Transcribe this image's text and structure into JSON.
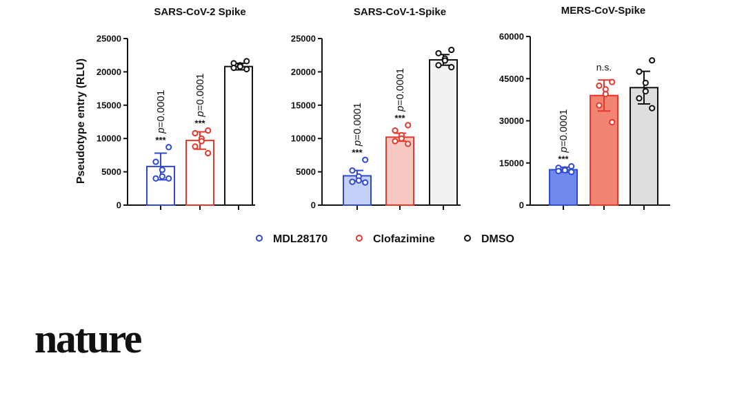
{
  "colors": {
    "mdl28170_edge": "#2f49d1",
    "clofazimine_edge": "#e8362a",
    "dmso_edge": "#111111",
    "axis": "#111111"
  },
  "brand": {
    "logo_text": "nature"
  },
  "figure": {
    "ylabel": "Pseudotype entry (RLU)"
  },
  "legend": [
    {
      "label": "MDL28170",
      "color": "#2f49d1"
    },
    {
      "label": "Clofazimine",
      "color": "#e8362a"
    },
    {
      "label": "DMSO",
      "color": "#111111"
    }
  ],
  "chart_data": [
    {
      "type": "bar",
      "title": "SARS-CoV-2 Spike",
      "ylabel": "Pseudotype entry (RLU)",
      "ylim": [
        0,
        25000
      ],
      "yticks": [
        0,
        5000,
        10000,
        15000,
        20000,
        25000
      ],
      "series": [
        {
          "name": "MDL28170",
          "mean": 5800,
          "sd": 2000,
          "fill": "#ffffff",
          "edge": "#2f49d1",
          "points": [
            8700,
            6500,
            5300,
            4300,
            4000,
            4000
          ],
          "annotation": {
            "stars": "***",
            "p": "=0.0001"
          }
        },
        {
          "name": "Clofazimine",
          "mean": 9700,
          "sd": 1300,
          "fill": "#ffffff",
          "edge": "#e8362a",
          "points": [
            11200,
            10800,
            10000,
            9600,
            8800,
            7800
          ],
          "annotation": {
            "stars": "***",
            "p": "=0.0001"
          }
        },
        {
          "name": "DMSO",
          "mean": 20800,
          "sd": 500,
          "fill": "#ffffff",
          "edge": "#111111",
          "points": [
            21600,
            21300,
            21000,
            20800,
            20600,
            20400
          ],
          "annotation": null
        }
      ]
    },
    {
      "type": "bar",
      "title": "SARS-CoV-1-Spike",
      "ylabel": "",
      "ylim": [
        0,
        25000
      ],
      "yticks": [
        0,
        5000,
        10000,
        15000,
        20000,
        25000
      ],
      "series": [
        {
          "name": "MDL28170",
          "mean": 4400,
          "sd": 800,
          "fill": "#c3d0f7",
          "edge": "#2f49d1",
          "points": [
            6800,
            5200,
            4300,
            3700,
            3500,
            3400
          ],
          "annotation": {
            "stars": "***",
            "p": "=0.0001"
          }
        },
        {
          "name": "Clofazimine",
          "mean": 10200,
          "sd": 600,
          "fill": "#f8c9c2",
          "edge": "#e8362a",
          "points": [
            12000,
            11200,
            10500,
            10000,
            9600,
            9200
          ],
          "annotation": {
            "stars": "***",
            "p": "=0.0001"
          }
        },
        {
          "name": "DMSO",
          "mean": 21800,
          "sd": 800,
          "fill": "#f1f1f1",
          "edge": "#111111",
          "points": [
            23300,
            22800,
            22000,
            21700,
            21000,
            20700
          ],
          "annotation": null
        }
      ]
    },
    {
      "type": "bar",
      "title": "MERS-CoV-Spike",
      "ylabel": "",
      "ylim": [
        0,
        60000
      ],
      "yticks": [
        0,
        15000,
        30000,
        45000,
        60000
      ],
      "series": [
        {
          "name": "MDL28170",
          "mean": 12600,
          "sd": 900,
          "fill": "#6f89ef",
          "edge": "#2f49d1",
          "points": [
            13800,
            13300,
            12700,
            12400,
            12100,
            11800
          ],
          "annotation": {
            "stars": "***",
            "p": "=0.0001"
          }
        },
        {
          "name": "Clofazimine",
          "mean": 39000,
          "sd": 5500,
          "fill": "#f38373",
          "edge": "#e8362a",
          "points": [
            43800,
            42500,
            41200,
            39500,
            35500,
            29500
          ],
          "annotation": {
            "ns": "n.s."
          }
        },
        {
          "name": "DMSO",
          "mean": 41800,
          "sd": 5800,
          "fill": "#dedede",
          "edge": "#111111",
          "points": [
            51500,
            47500,
            43500,
            40500,
            38000,
            34500
          ],
          "annotation": null
        }
      ]
    }
  ]
}
